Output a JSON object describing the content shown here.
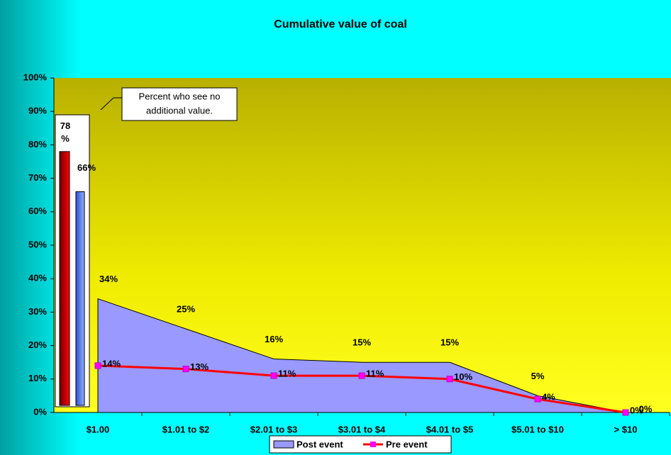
{
  "chart_data": {
    "type": "area",
    "title": "Cumulative value of coal",
    "categories": [
      "$1.00",
      "$1.01 to $2",
      "$2.01 to $3",
      "$3.01 to $4",
      "$4.01 to $5",
      "$5.01 to $10",
      "> $10"
    ],
    "series": [
      {
        "name": "Post event",
        "type": "area",
        "color": "#9999ff",
        "values": [
          34,
          25,
          16,
          15,
          15,
          5,
          0
        ],
        "value_labels": [
          "34%",
          "25%",
          "16%",
          "15%",
          "15%",
          "5%",
          "0%"
        ]
      },
      {
        "name": "Pre event",
        "type": "line",
        "color": "#ff0000",
        "marker_color": "#ff00ff",
        "values": [
          14,
          13,
          11,
          11,
          10,
          4,
          0
        ],
        "value_labels": [
          "14%",
          "13%",
          "11%",
          "11%",
          "10%",
          "4%",
          "0%"
        ]
      }
    ],
    "ylim": [
      0,
      100
    ],
    "yticks": [
      {
        "value": 0,
        "label": "0%"
      },
      {
        "value": 10,
        "label": "10%"
      },
      {
        "value": 20,
        "label": "20%"
      },
      {
        "value": 30,
        "label": "30%"
      },
      {
        "value": 40,
        "label": "40%"
      },
      {
        "value": 50,
        "label": "50%"
      },
      {
        "value": 60,
        "label": "60%"
      },
      {
        "value": 70,
        "label": "70%"
      },
      {
        "value": 80,
        "label": "80%"
      },
      {
        "value": 90,
        "label": "90%"
      },
      {
        "value": 100,
        "label": "100%"
      }
    ],
    "legend": "bottom",
    "inset": {
      "annotation": [
        "Percent who see no",
        "additional value."
      ],
      "bars": [
        {
          "color": "#c00000",
          "value": 78,
          "label": "78%"
        },
        {
          "color": "#6f8fff",
          "value": 66,
          "label": "66%"
        }
      ]
    }
  }
}
